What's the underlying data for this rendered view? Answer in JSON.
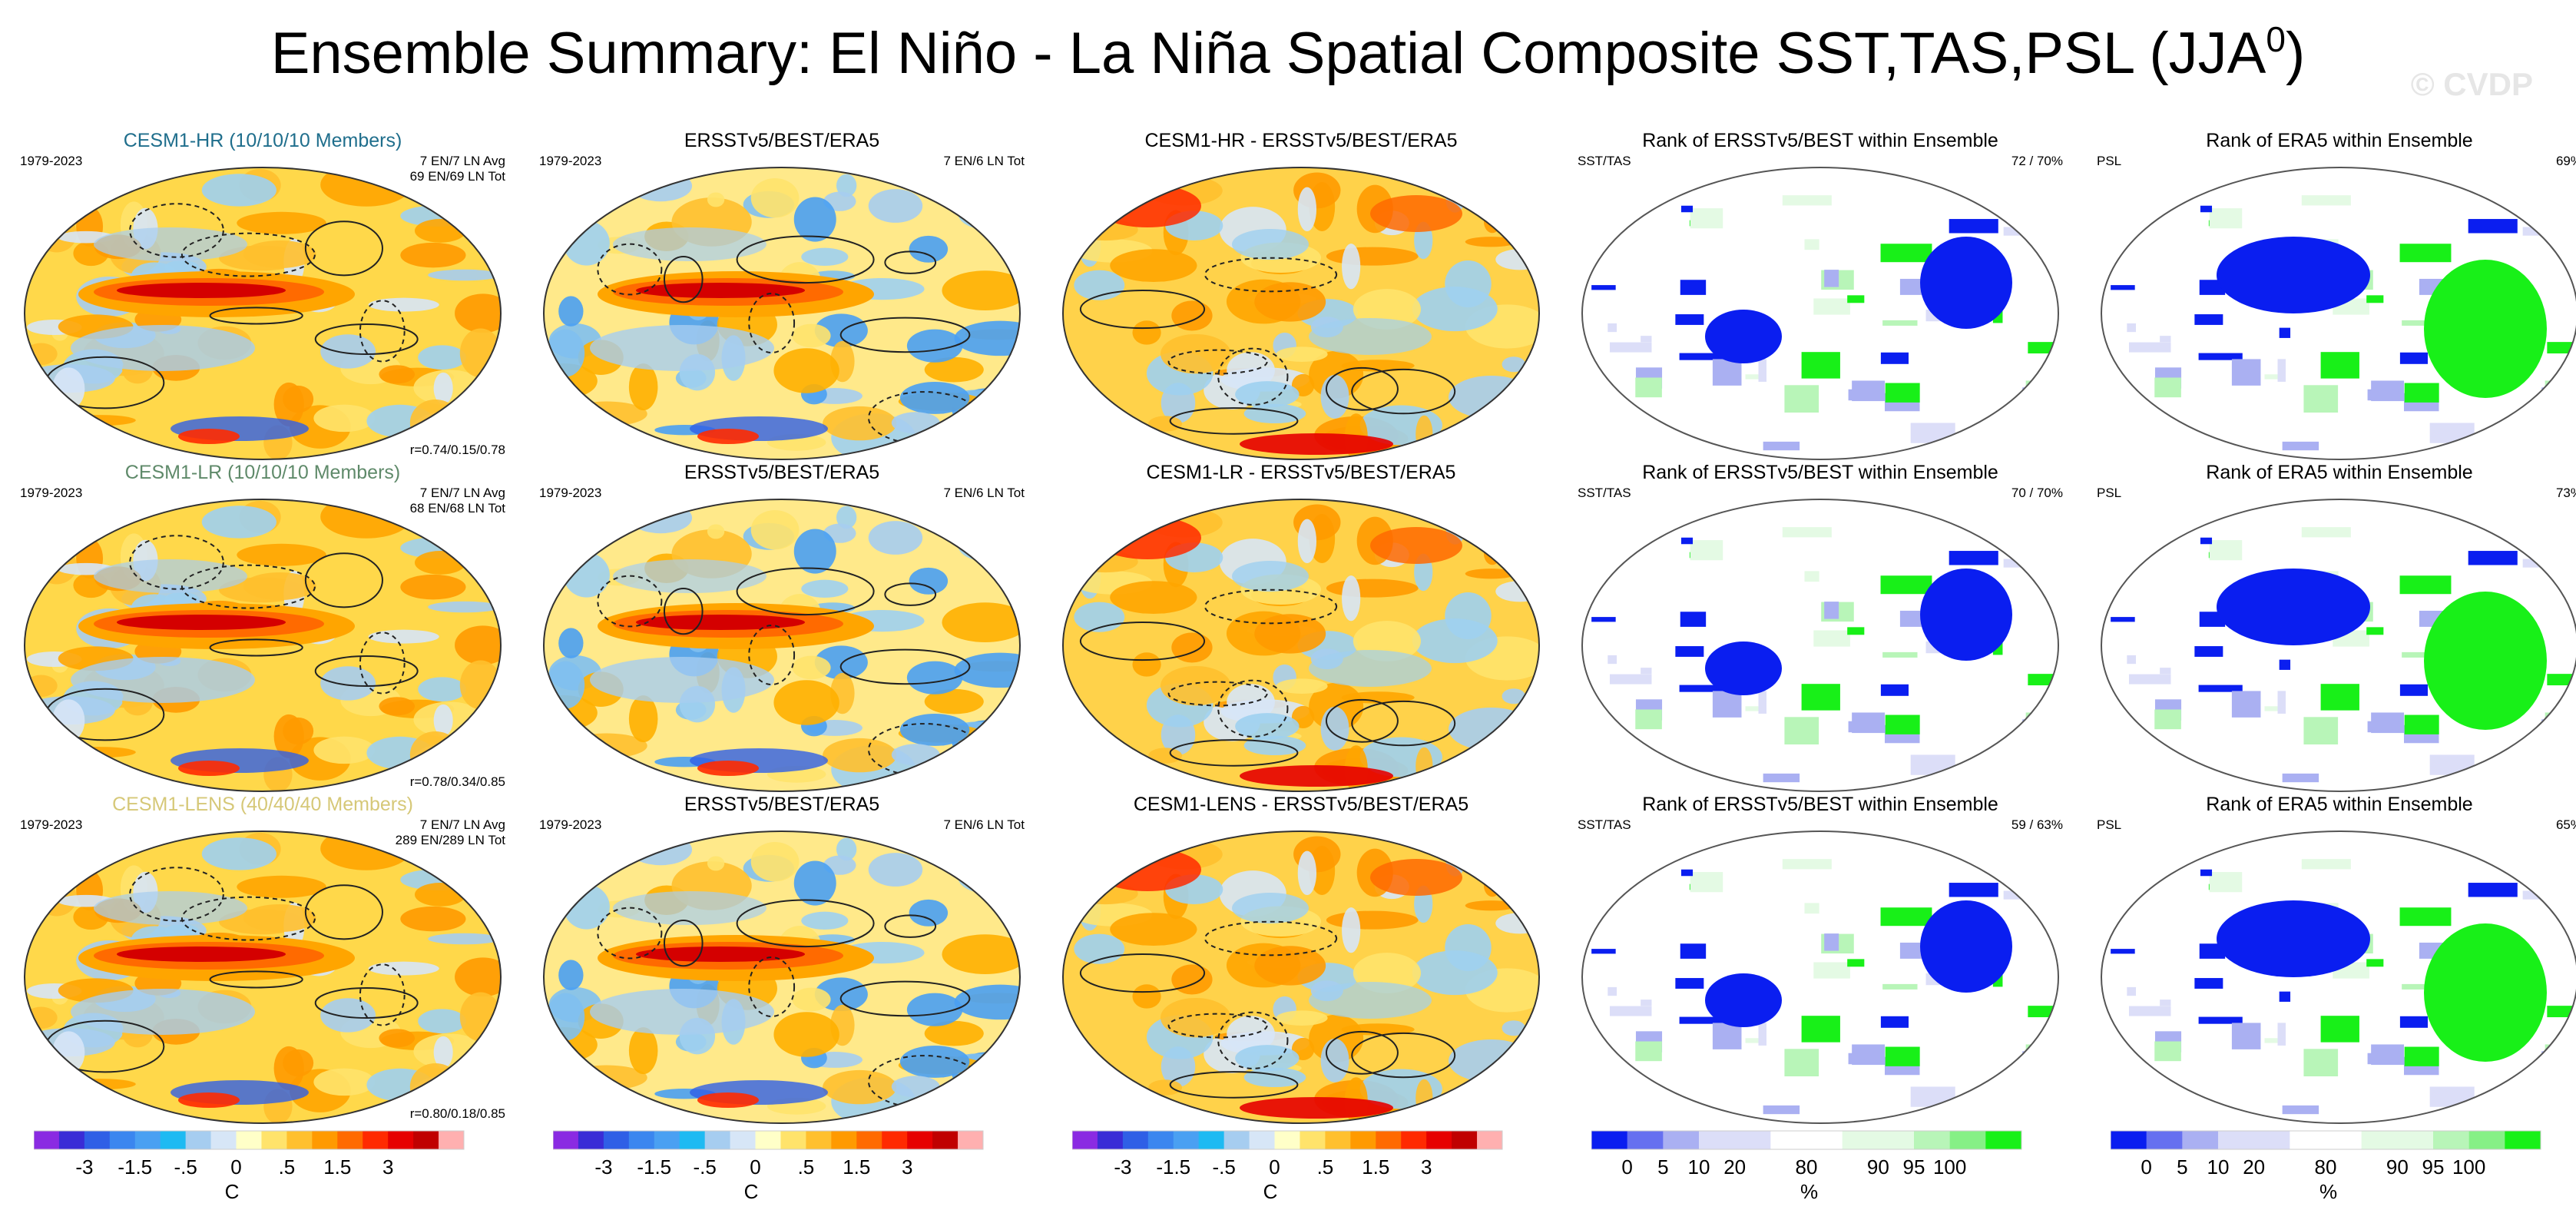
{
  "title_main": "Ensemble Summary: El Niño - La Niña Spatial Composite SST,TAS,PSL (JJA",
  "title_sup": "0",
  "title_close": ")",
  "watermark": "© CVDP",
  "rows": [
    {
      "panels": [
        {
          "title": "CESM1-HR (10/10/10 Members)",
          "title_color": "#1f6e8c",
          "left": "1979-2023",
          "right": [
            "7 EN/7 LN Avg",
            "69 EN/69 LN Tot"
          ],
          "bottom": "r=0.74/0.15/0.78"
        },
        {
          "title": "ERSSTv5/BEST/ERA5",
          "left": "1979-2023",
          "right": [
            "7 EN/6 LN Tot"
          ]
        },
        {
          "title": "CESM1-HR - ERSSTv5/BEST/ERA5"
        },
        {
          "title": "Rank of ERSSTv5/BEST within Ensemble",
          "left": "SST/TAS",
          "right": [
            "72 /  70%"
          ]
        },
        {
          "title": "Rank of ERA5 within Ensemble",
          "left": "PSL",
          "right": [
            "69%"
          ]
        }
      ]
    },
    {
      "panels": [
        {
          "title": "CESM1-LR (10/10/10 Members)",
          "title_color": "#5f8a6a",
          "left": "1979-2023",
          "right": [
            "7 EN/7 LN Avg",
            "68 EN/68 LN Tot"
          ],
          "bottom": "r=0.78/0.34/0.85"
        },
        {
          "title": "ERSSTv5/BEST/ERA5",
          "left": "1979-2023",
          "right": [
            "7 EN/6 LN Tot"
          ]
        },
        {
          "title": "CESM1-LR - ERSSTv5/BEST/ERA5"
        },
        {
          "title": "Rank of ERSSTv5/BEST within Ensemble",
          "left": "SST/TAS",
          "right": [
            "70 /  70%"
          ]
        },
        {
          "title": "Rank of ERA5 within Ensemble",
          "left": "PSL",
          "right": [
            "73%"
          ]
        }
      ]
    },
    {
      "panels": [
        {
          "title": "CESM1-LENS (40/40/40 Members)",
          "title_color": "#d6c878",
          "left": "1979-2023",
          "right": [
            "7 EN/7 LN Avg",
            "289 EN/289 LN Tot"
          ],
          "bottom": "r=0.80/0.18/0.85"
        },
        {
          "title": "ERSSTv5/BEST/ERA5",
          "left": "1979-2023",
          "right": [
            "7 EN/6 LN Tot"
          ]
        },
        {
          "title": "CESM1-LENS - ERSSTv5/BEST/ERA5"
        },
        {
          "title": "Rank of ERSSTv5/BEST within Ensemble",
          "left": "SST/TAS",
          "right": [
            "59 /  63%"
          ]
        },
        {
          "title": "Rank of ERA5 within Ensemble",
          "left": "PSL",
          "right": [
            "65%"
          ]
        }
      ]
    }
  ],
  "colorbars": {
    "anomaly": {
      "colors": [
        "#8a2be2",
        "#3a2cd6",
        "#2f5fe6",
        "#3b86ef",
        "#4aa0f2",
        "#1ebaf2",
        "#a6cdf0",
        "#d7e6f7",
        "#ffffc8",
        "#ffe36b",
        "#ffc02e",
        "#ff9a00",
        "#ff6a00",
        "#ff2a00",
        "#e60000",
        "#c00000",
        "#ffb0b0"
      ],
      "labels": [
        "-3",
        "-1.5",
        "-.5",
        "0",
        ".5",
        "1.5",
        "3"
      ],
      "units": "C"
    },
    "rank": {
      "colors": [
        "#0a1ef0",
        "#6670f0",
        "#aab0f2",
        "#dcdef8",
        "#dcdef8",
        "#ffffff",
        "#ffffff",
        "#e4fae4",
        "#e4fae4",
        "#b8f5b8",
        "#86f086",
        "#18f018"
      ],
      "labels": [
        "0",
        "5",
        "10",
        "20",
        "80",
        "90",
        "95",
        "100"
      ],
      "units": "%"
    }
  },
  "palette": {
    "anomaly_levels": [
      "-3",
      "-1.5",
      "-.5",
      "0",
      ".5",
      "1.5",
      "3"
    ]
  }
}
